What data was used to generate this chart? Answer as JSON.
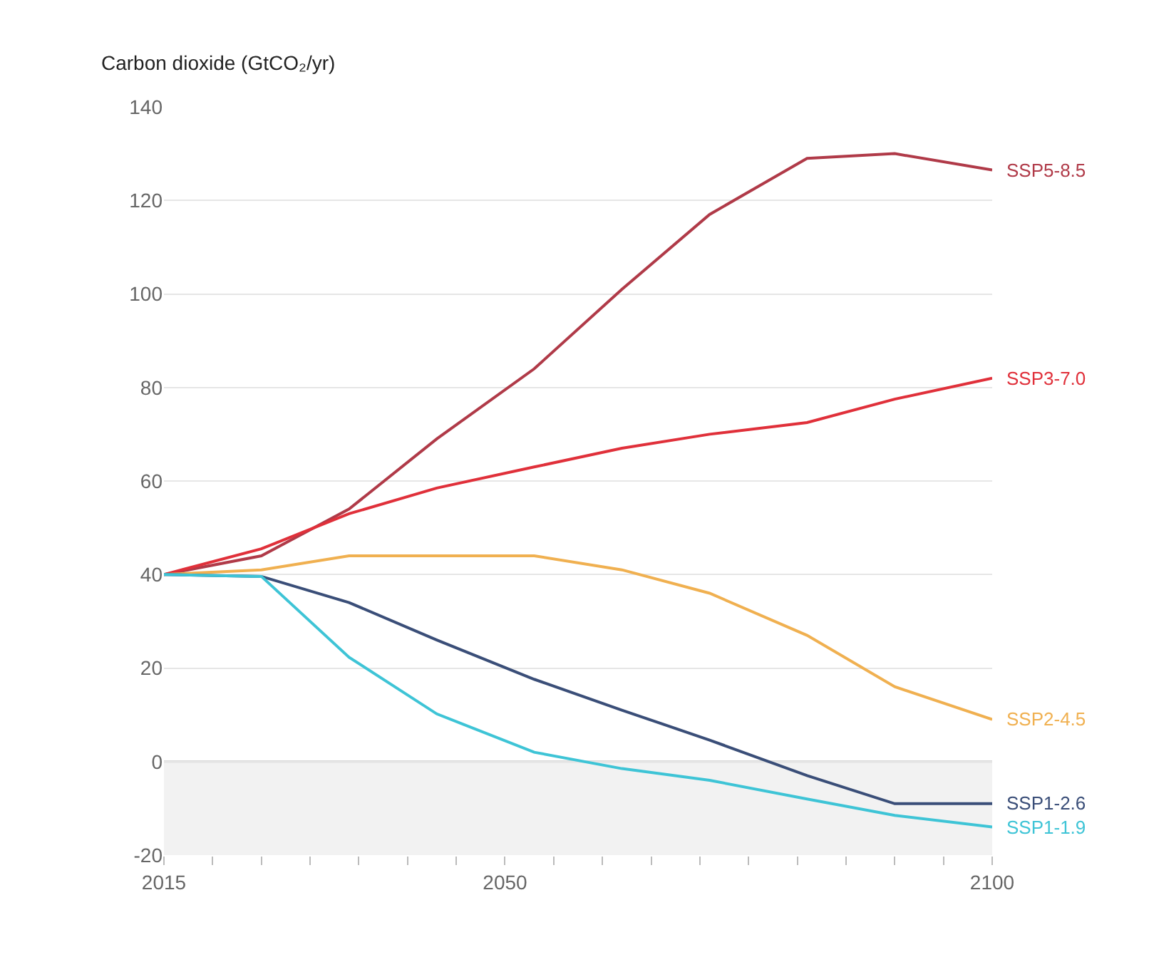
{
  "chart_data": {
    "type": "line",
    "ylabel": "Carbon dioxide (GtCO₂/yr)",
    "x": [
      2015,
      2025,
      2034,
      2043,
      2053,
      2062,
      2071,
      2081,
      2090,
      2100
    ],
    "series": [
      {
        "name": "SSP5-8.5",
        "color": "#b03a48",
        "values": [
          40,
          44,
          54,
          69,
          84,
          101,
          117,
          129,
          130,
          126.5
        ]
      },
      {
        "name": "SSP3-7.0",
        "color": "#e0303a",
        "values": [
          40,
          45.5,
          53,
          58.5,
          63,
          67,
          70,
          72.5,
          77.5,
          82
        ]
      },
      {
        "name": "SSP2-4.5",
        "color": "#f0b050",
        "values": [
          40,
          41,
          44,
          44,
          44,
          41,
          36,
          27,
          16,
          9
        ]
      },
      {
        "name": "SSP1-2.6",
        "color": "#3a4e78",
        "values": [
          40,
          39.6,
          34,
          26,
          17.6,
          11,
          4.6,
          -3,
          -9,
          -9
        ]
      },
      {
        "name": "SSP1-1.9",
        "color": "#3ec4d6",
        "values": [
          40,
          39.6,
          22.3,
          10.2,
          2,
          -1.5,
          -4,
          -8,
          -11.5,
          -14
        ]
      }
    ],
    "xlim": [
      2015,
      2100
    ],
    "xticks": [
      2015,
      {
        "value": 2020,
        "label": null
      },
      {
        "value": 2025,
        "label": null
      },
      {
        "value": 2030,
        "label": null
      },
      {
        "value": 2035,
        "label": null
      },
      {
        "value": 2040,
        "label": null
      },
      {
        "value": 2045,
        "label": null
      },
      2050,
      {
        "value": 2055,
        "label": null
      },
      {
        "value": 2060,
        "label": null
      },
      {
        "value": 2065,
        "label": null
      },
      {
        "value": 2070,
        "label": null
      },
      {
        "value": 2075,
        "label": null
      },
      {
        "value": 2080,
        "label": null
      },
      {
        "value": 2085,
        "label": null
      },
      {
        "value": 2090,
        "label": null
      },
      {
        "value": 2095,
        "label": null
      },
      2100
    ],
    "ylim": [
      -20,
      140
    ],
    "yticks": [
      -20,
      0,
      20,
      40,
      60,
      80,
      100,
      120,
      140
    ],
    "grid": "y",
    "bands": [
      {
        "axis": "y",
        "from": -20,
        "to": 0,
        "color": "#f2f2f2"
      }
    ],
    "ref_lines": [
      {
        "axis": "y",
        "value": 0,
        "color": "#cccccc"
      }
    ],
    "line_style": "solid",
    "marker": "none",
    "legend": false
  }
}
